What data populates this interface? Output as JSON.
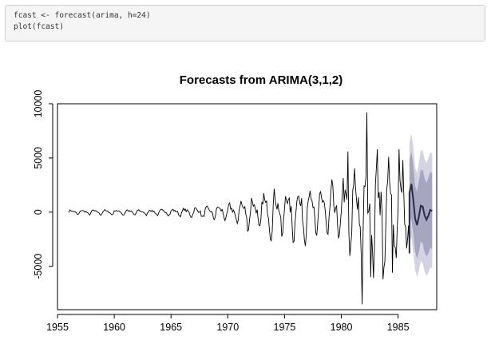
{
  "code": {
    "lines": [
      "fcast <- forecast(arima, h=24)",
      "plot(fcast)"
    ]
  },
  "colors": {
    "history": "#000000",
    "forecast_mean": "#2b2b4a",
    "band_80": "#a6a6c0",
    "band_95": "#d3d3e4"
  },
  "chart_data": {
    "type": "line",
    "title": "Forecasts from ARIMA(3,1,2)",
    "xlabel": "",
    "ylabel": "",
    "xlim": [
      1955,
      1988.4
    ],
    "ylim": [
      -9000,
      10000
    ],
    "x_ticks": [
      1955,
      1960,
      1965,
      1970,
      1975,
      1980,
      1985
    ],
    "y_ticks": [
      -5000,
      0,
      5000,
      10000
    ],
    "grid": false,
    "legend": "none",
    "history": {
      "start": 1956.0,
      "frequency": 12,
      "description_values": "monthly observations",
      "anchors": [
        [
          1956.0,
          0
        ],
        [
          1957.0,
          0
        ],
        [
          1960.0,
          0
        ],
        [
          1965.0,
          0
        ],
        [
          1966.0,
          0
        ],
        [
          1968.0,
          0
        ],
        [
          1970.0,
          0
        ],
        [
          1972.0,
          0
        ],
        [
          1974.0,
          0
        ],
        [
          1976.0,
          0
        ],
        [
          1978.0,
          0
        ],
        [
          1980.0,
          0
        ],
        [
          1982.0,
          0
        ],
        [
          1984.0,
          0
        ],
        [
          1986.0,
          0
        ]
      ],
      "amplitude_anchors": [
        [
          1956.0,
          250
        ],
        [
          1960.0,
          280
        ],
        [
          1965.0,
          330
        ],
        [
          1968.0,
          600
        ],
        [
          1970.0,
          900
        ],
        [
          1972.0,
          1800
        ],
        [
          1974.0,
          2600
        ],
        [
          1976.0,
          2800
        ],
        [
          1978.0,
          3000
        ],
        [
          1980.0,
          3700
        ],
        [
          1981.5,
          6000
        ],
        [
          1982.5,
          6500
        ],
        [
          1984.0,
          4800
        ],
        [
          1986.0,
          3800
        ]
      ],
      "extremes": [
        [
          1980.6,
          5600
        ],
        [
          1981.8,
          -8500
        ],
        [
          1982.25,
          9200
        ],
        [
          1982.6,
          -6000
        ],
        [
          1983.2,
          5800
        ],
        [
          1983.7,
          -6200
        ],
        [
          1984.2,
          5100
        ],
        [
          1984.5,
          -5600
        ],
        [
          1985.1,
          5800
        ],
        [
          1985.4,
          4800
        ],
        [
          1986.0,
          -3800
        ]
      ]
    },
    "forecast": {
      "x": [
        1986.0,
        1986.17,
        1986.33,
        1986.5,
        1986.67,
        1986.83,
        1987.0,
        1987.17,
        1987.33,
        1987.5,
        1987.67,
        1987.83,
        1988.0
      ],
      "mean": [
        1800,
        2600,
        1200,
        -600,
        -1200,
        -400,
        600,
        500,
        -300,
        -700,
        -300,
        200,
        100
      ],
      "lo80": [
        -1200,
        -600,
        -2000,
        -3600,
        -4300,
        -3700,
        -2700,
        -2900,
        -3700,
        -4100,
        -3800,
        -3300,
        -3400
      ],
      "hi80": [
        4800,
        5600,
        4400,
        2400,
        1900,
        2900,
        3900,
        3900,
        3100,
        2700,
        3200,
        3700,
        3600
      ],
      "lo95": [
        -2800,
        -2300,
        -3700,
        -5300,
        -6000,
        -5400,
        -4500,
        -4700,
        -5500,
        -5900,
        -5600,
        -5100,
        -5200
      ],
      "hi95": [
        6400,
        7300,
        6100,
        4100,
        3600,
        4600,
        5700,
        5700,
        4900,
        4500,
        5000,
        5500,
        5400
      ]
    }
  }
}
